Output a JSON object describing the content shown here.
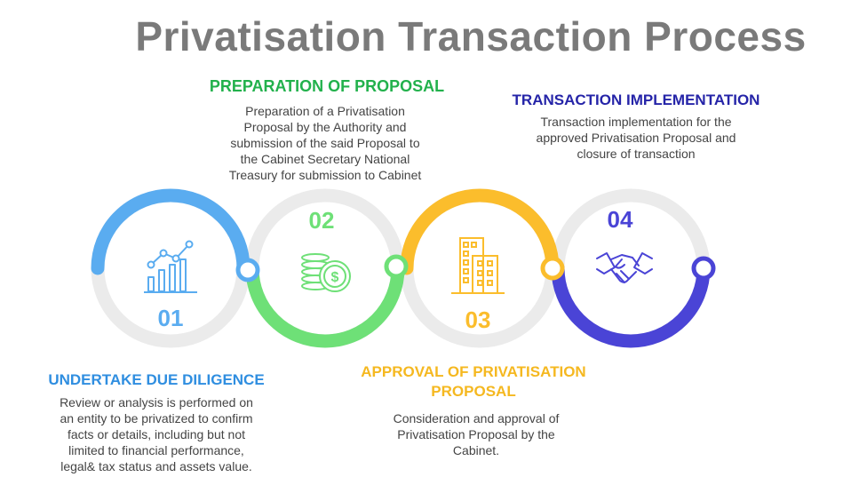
{
  "title": "Privatisation Transaction Process",
  "colors": {
    "step1": "#5aacf0",
    "step2": "#6ee077",
    "step3": "#fbbd2c",
    "step4": "#4a44d6",
    "ring_gray": "#ebebeb",
    "title_gray": "#7a7a7a"
  },
  "steps": [
    {
      "number": "01",
      "heading": "UNDERTAKE DUE DILIGENCE",
      "lines": [
        "Review or analysis is performed on",
        "an entity to be privatized to confirm",
        "facts or details, including but not",
        "limited to financial performance,",
        "legal& tax status and assets value."
      ],
      "icon": "growth-chart-icon"
    },
    {
      "number": "02",
      "heading": "PREPARATION OF PROPOSAL",
      "lines": [
        "Preparation of a  Privatisation",
        "Proposal by the Authority and",
        "submission of the said Proposal to",
        "the Cabinet Secretary National",
        "Treasury for submission  to Cabinet"
      ],
      "icon": "coins-dollar-icon"
    },
    {
      "number": "03",
      "heading_lines": [
        "APPROVAL OF PRIVATISATION",
        "PROPOSAL"
      ],
      "lines": [
        "Consideration and approval of",
        "Privatisation Proposal by the",
        "Cabinet."
      ],
      "icon": "office-building-icon"
    },
    {
      "number": "04",
      "heading": "TRANSACTION IMPLEMENTATION",
      "lines": [
        "Transaction implementation for the",
        "approved Privatisation Proposal and",
        "closure of transaction"
      ],
      "icon": "handshake-icon"
    }
  ]
}
